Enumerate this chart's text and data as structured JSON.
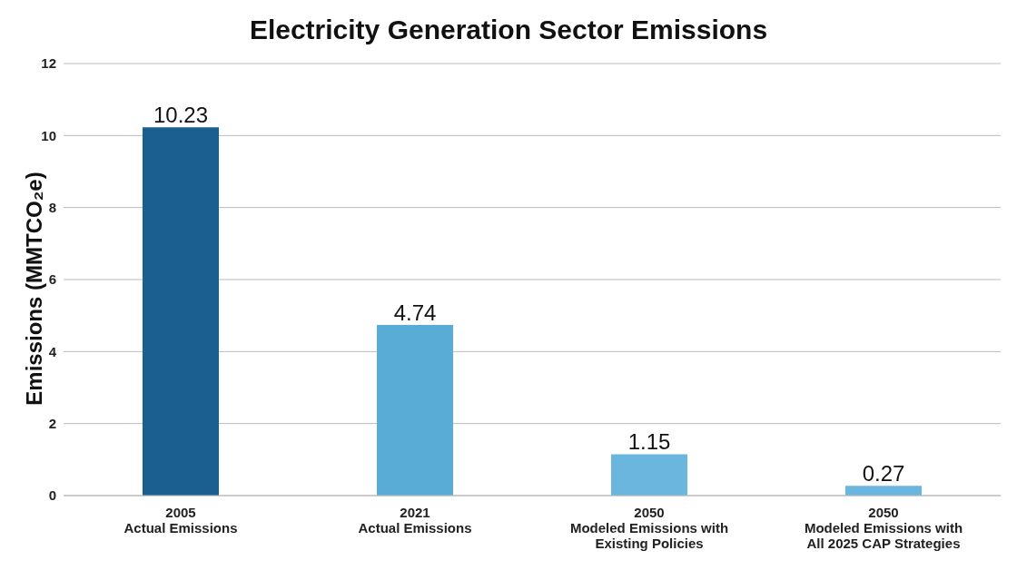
{
  "chart_data": {
    "type": "bar",
    "title": "Electricity Generation Sector Emissions",
    "ylabel": "Emissions (MMTCO₂e)",
    "categories": [
      "2005\nActual Emissions",
      "2021\nActual Emissions",
      "2050\nModeled Emissions with\nExisting Policies",
      "2050\nModeled Emissions with\nAll 2025 CAP Strategies"
    ],
    "values": [
      10.23,
      4.74,
      1.15,
      0.27
    ],
    "colors": [
      "#1a5f8f",
      "#58acd6",
      "#6bb6de",
      "#6bb6de"
    ],
    "ylim": [
      0,
      12
    ],
    "yticks": [
      0,
      2,
      4,
      6,
      8,
      10,
      12
    ],
    "grid": "y",
    "data_labels": true
  }
}
